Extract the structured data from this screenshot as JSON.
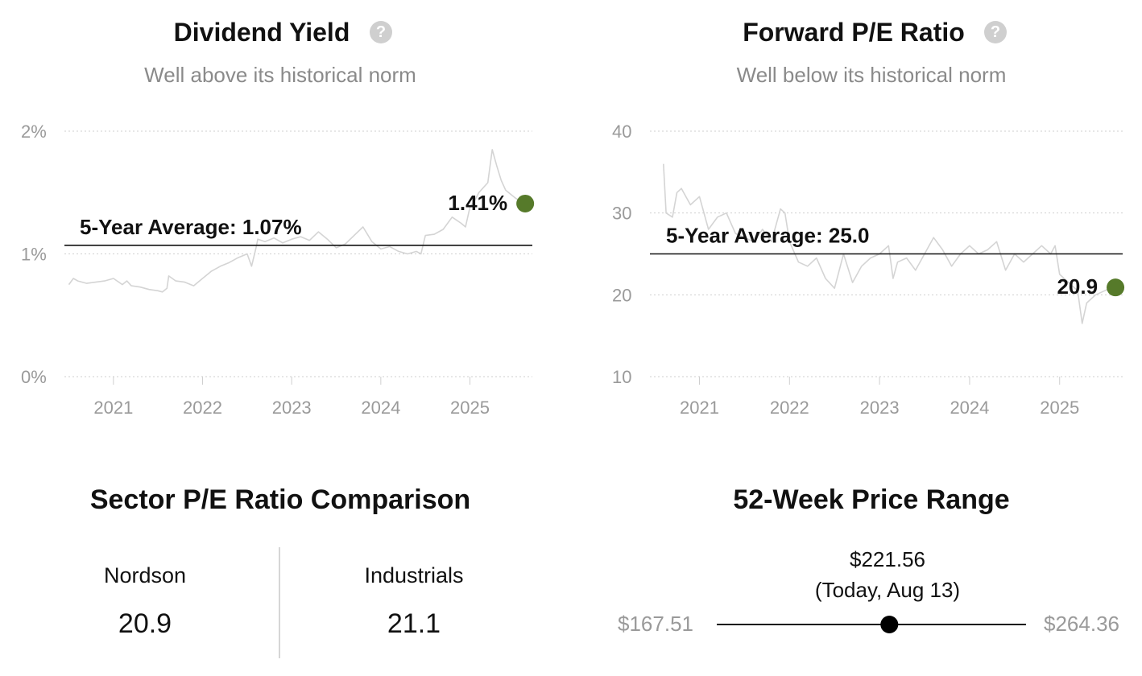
{
  "chart_data": [
    {
      "type": "line",
      "title": "Dividend Yield",
      "subtitle": "Well above its historical norm",
      "y_ticks": [
        "0%",
        "1%",
        "2%"
      ],
      "x_ticks": [
        "2021",
        "2022",
        "2023",
        "2024",
        "2025"
      ],
      "ylim": [
        0,
        2
      ],
      "xlim": [
        2020.45,
        2025.7
      ],
      "average": {
        "label": "5-Year Average: 1.07%",
        "value": 1.07
      },
      "current": {
        "label": "1.41%",
        "x": 2025.62,
        "value": 1.41
      },
      "series": [
        {
          "x": [
            2020.5,
            2020.55,
            2020.6,
            2020.7,
            2020.8,
            2020.9,
            2021.0,
            2021.1,
            2021.15,
            2021.2,
            2021.3,
            2021.4,
            2021.5,
            2021.55,
            2021.6,
            2021.62,
            2021.7,
            2021.8,
            2021.9,
            2022.0,
            2022.1,
            2022.2,
            2022.3,
            2022.4,
            2022.5,
            2022.55,
            2022.6,
            2022.62,
            2022.7,
            2022.8,
            2022.9,
            2023.0,
            2023.1,
            2023.2,
            2023.3,
            2023.4,
            2023.5,
            2023.6,
            2023.7,
            2023.8,
            2023.9,
            2024.0,
            2024.1,
            2024.2,
            2024.3,
            2024.4,
            2024.45,
            2024.5,
            2024.6,
            2024.7,
            2024.8,
            2024.9,
            2024.95,
            2025.0,
            2025.05,
            2025.1,
            2025.2,
            2025.25,
            2025.3,
            2025.35,
            2025.4,
            2025.5,
            2025.58
          ],
          "values": [
            0.75,
            0.8,
            0.78,
            0.76,
            0.77,
            0.78,
            0.8,
            0.75,
            0.78,
            0.74,
            0.73,
            0.71,
            0.7,
            0.69,
            0.72,
            0.82,
            0.78,
            0.77,
            0.74,
            0.8,
            0.86,
            0.9,
            0.93,
            0.97,
            1.0,
            0.9,
            1.05,
            1.12,
            1.1,
            1.13,
            1.09,
            1.12,
            1.14,
            1.11,
            1.18,
            1.12,
            1.05,
            1.08,
            1.15,
            1.22,
            1.1,
            1.04,
            1.06,
            1.02,
            1.0,
            1.02,
            1.0,
            1.15,
            1.16,
            1.2,
            1.3,
            1.25,
            1.22,
            1.38,
            1.43,
            1.5,
            1.58,
            1.85,
            1.72,
            1.6,
            1.52,
            1.46,
            1.42
          ]
        }
      ]
    },
    {
      "type": "line",
      "title": "Forward P/E Ratio",
      "subtitle": "Well below its historical norm",
      "y_ticks": [
        "10",
        "20",
        "30",
        "40"
      ],
      "x_ticks": [
        "2021",
        "2022",
        "2023",
        "2024",
        "2025"
      ],
      "ylim": [
        10,
        40
      ],
      "xlim": [
        2020.45,
        2025.7
      ],
      "average": {
        "label": "5-Year Average: 25.0",
        "value": 25.0
      },
      "current": {
        "label": "20.9",
        "x": 2025.62,
        "value": 20.9
      },
      "series": [
        {
          "x": [
            2020.6,
            2020.63,
            2020.7,
            2020.75,
            2020.8,
            2020.9,
            2021.0,
            2021.1,
            2021.2,
            2021.3,
            2021.4,
            2021.5,
            2021.6,
            2021.7,
            2021.8,
            2021.9,
            2021.95,
            2022.0,
            2022.1,
            2022.2,
            2022.3,
            2022.4,
            2022.5,
            2022.6,
            2022.7,
            2022.8,
            2022.9,
            2023.0,
            2023.1,
            2023.15,
            2023.2,
            2023.3,
            2023.4,
            2023.5,
            2023.6,
            2023.7,
            2023.8,
            2023.9,
            2024.0,
            2024.1,
            2024.2,
            2024.3,
            2024.4,
            2024.5,
            2024.6,
            2024.7,
            2024.8,
            2024.9,
            2024.95,
            2025.0,
            2025.1,
            2025.2,
            2025.25,
            2025.3,
            2025.4,
            2025.5,
            2025.58
          ],
          "values": [
            36,
            30,
            29.5,
            32.5,
            33,
            31,
            32,
            28,
            29.5,
            30,
            27.5,
            27,
            26.5,
            28,
            26.5,
            30.5,
            30,
            26.5,
            24,
            23.5,
            24.5,
            22,
            20.8,
            25,
            21.5,
            23.5,
            24.5,
            25,
            26,
            22,
            24,
            24.5,
            23,
            25,
            27,
            25.5,
            23.5,
            25,
            26,
            25,
            25.5,
            26.5,
            23,
            25,
            24,
            25,
            26,
            25,
            26,
            22.5,
            21.5,
            20.5,
            16.5,
            19,
            20,
            20.5,
            20.9
          ]
        }
      ]
    }
  ],
  "sector": {
    "title": "Sector P/E Ratio Comparison",
    "items": [
      {
        "name": "Nordson",
        "value": "20.9"
      },
      {
        "name": "Industrials",
        "value": "21.1"
      }
    ]
  },
  "price_range": {
    "title": "52-Week Price Range",
    "current_price": "$221.56",
    "current_note": "(Today, Aug 13)",
    "low": "$167.51",
    "high": "$264.36",
    "low_value": 167.51,
    "high_value": 264.36,
    "current_value": 221.56
  },
  "colors": {
    "marker": "#567a2a",
    "line": "#d4d4d4",
    "grid": "#cfcfcf",
    "avg_line": "#111111"
  }
}
